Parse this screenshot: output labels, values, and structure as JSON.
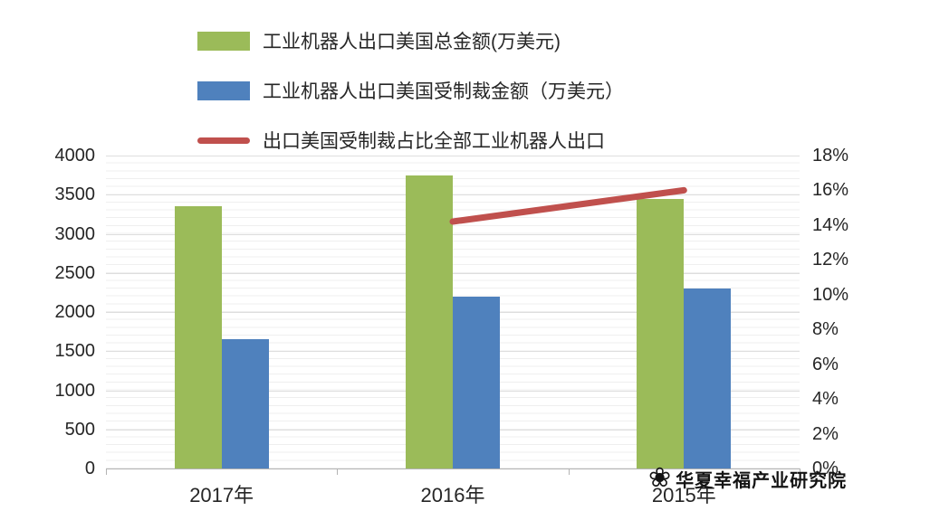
{
  "chart_data": {
    "type": "bar",
    "categories": [
      "2017年",
      "2016年",
      "2015年"
    ],
    "series": [
      {
        "name": "工业机器人出口美国总金额(万美元)",
        "kind": "bar",
        "axis": "left",
        "color": "#9bbb59",
        "values": [
          3350,
          3750,
          3450
        ]
      },
      {
        "name": "工业机器人出口美国受制裁金额（万美元）",
        "kind": "bar",
        "axis": "left",
        "color": "#4f81bd",
        "values": [
          1650,
          2200,
          2300
        ]
      },
      {
        "name": "出口美国受制裁占比全部工业机器人出口",
        "kind": "line",
        "axis": "right",
        "color": "#c0504d",
        "values": [
          null,
          14.2,
          16.0
        ]
      }
    ],
    "left_axis": {
      "min": 0,
      "max": 4000,
      "step": 500,
      "ticks": [
        "0",
        "500",
        "1000",
        "1500",
        "2000",
        "2500",
        "3000",
        "3500",
        "4000"
      ]
    },
    "right_axis": {
      "min": 0,
      "max": 18,
      "step": 2,
      "suffix": "%",
      "ticks": [
        "0%",
        "2%",
        "4%",
        "6%",
        "8%",
        "10%",
        "12%",
        "14%",
        "16%",
        "18%"
      ]
    },
    "legend_position": "top",
    "grid": true,
    "title": "",
    "xlabel": "",
    "ylabel": ""
  },
  "watermark": {
    "icon": "❀",
    "text": "华夏幸福产业研究院"
  }
}
